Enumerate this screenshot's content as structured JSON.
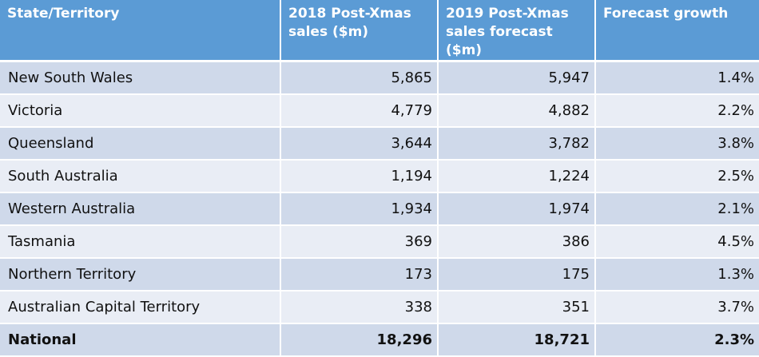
{
  "chart_data": {
    "type": "table",
    "columns": [
      "State/Territory",
      "2018 Post-Xmas sales ($m)",
      "2019 Post-Xmas sales forecast ($m)",
      "Forecast growth"
    ],
    "rows": [
      [
        "New South Wales",
        "5,865",
        "5,947",
        "1.4%"
      ],
      [
        "Victoria",
        "4,779",
        "4,882",
        "2.2%"
      ],
      [
        "Queensland",
        "3,644",
        "3,782",
        "3.8%"
      ],
      [
        "South Australia",
        "1,194",
        "1,224",
        "2.5%"
      ],
      [
        "Western Australia",
        "1,934",
        "1,974",
        "2.1%"
      ],
      [
        "Tasmania",
        "369",
        "386",
        "4.5%"
      ],
      [
        "Northern Territory",
        "173",
        "175",
        "1.3%"
      ],
      [
        "Australian Capital Territory",
        "338",
        "351",
        "3.7%"
      ],
      [
        "National",
        "18,296",
        "18,721",
        "2.3%"
      ]
    ],
    "colors": {
      "header": "#5b9bd5",
      "row_dark": "#cfd9ea",
      "row_light": "#e9edf5"
    }
  }
}
